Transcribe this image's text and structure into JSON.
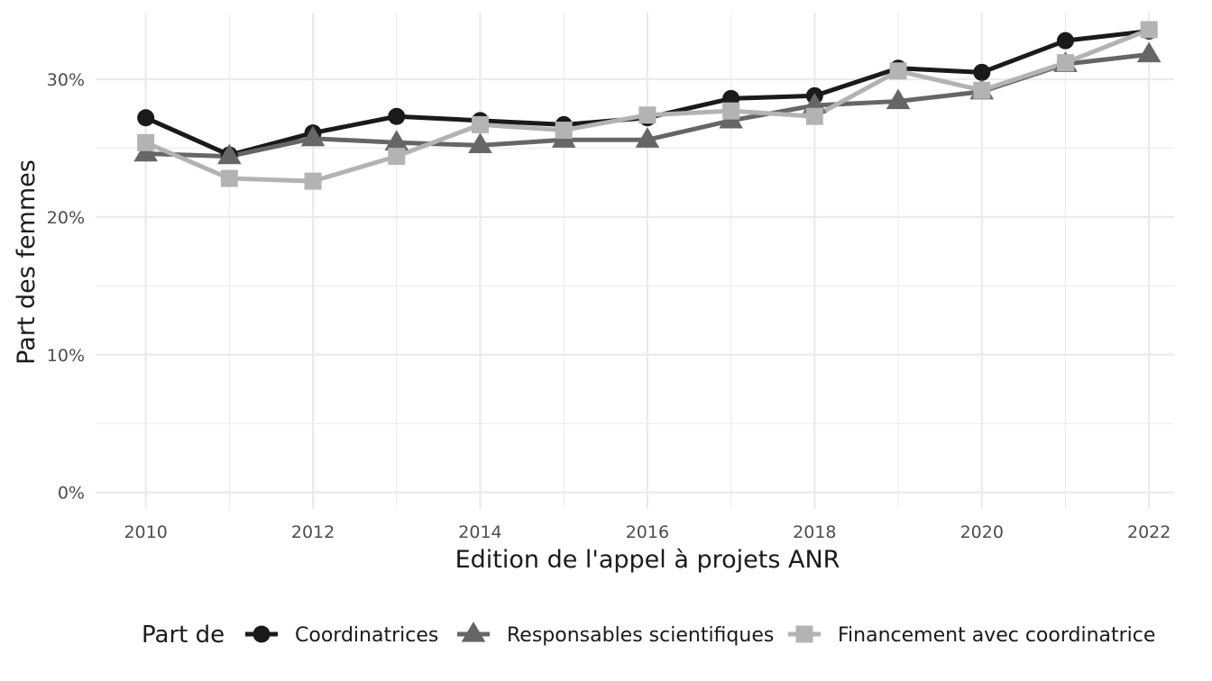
{
  "chart_data": {
    "type": "line",
    "title": "",
    "xlabel": "Edition de l'appel à projets ANR",
    "ylabel": "Part des femmes",
    "x": [
      2010,
      2011,
      2012,
      2013,
      2014,
      2015,
      2016,
      2017,
      2018,
      2019,
      2020,
      2021,
      2022
    ],
    "x_tick_labels": [
      "2010",
      "2012",
      "2014",
      "2016",
      "2018",
      "2020",
      "2022"
    ],
    "y_tick_labels": [
      "0%",
      "10%",
      "20%",
      "30%"
    ],
    "xlim": [
      2009.4,
      2022.3
    ],
    "ylim": [
      -1.2,
      35.1
    ],
    "grid": true,
    "legend": {
      "title": "Part de",
      "position": "bottom"
    },
    "series": [
      {
        "name": "Coordinatrices",
        "color": "#1a1a1a",
        "marker": "circle",
        "values": [
          27.2,
          24.5,
          26.1,
          27.3,
          27.0,
          26.7,
          27.2,
          28.6,
          28.8,
          30.8,
          30.5,
          32.8,
          33.5
        ]
      },
      {
        "name": "Responsables scientifiques",
        "color": "#666666",
        "marker": "triangle",
        "values": [
          24.6,
          24.4,
          25.7,
          25.4,
          25.2,
          25.6,
          25.6,
          27.0,
          28.1,
          28.4,
          29.1,
          31.1,
          31.8
        ]
      },
      {
        "name": "Financement avec coordinatrice",
        "color": "#b3b3b3",
        "marker": "square",
        "values": [
          25.4,
          22.8,
          22.6,
          24.4,
          26.7,
          26.3,
          27.4,
          27.7,
          27.3,
          30.6,
          29.2,
          31.2,
          33.6
        ]
      }
    ]
  }
}
